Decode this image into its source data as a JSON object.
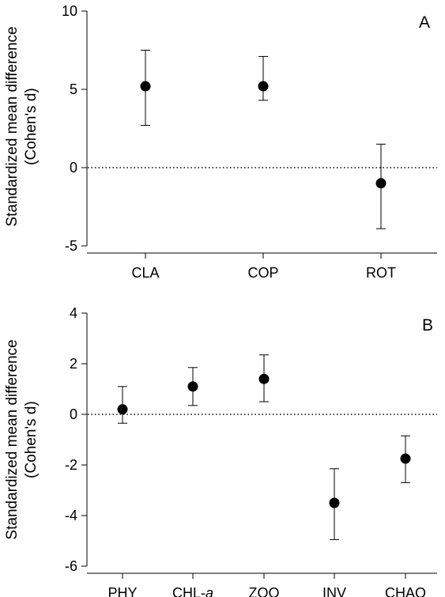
{
  "chart_data": [
    {
      "type": "scatter",
      "panel_label": "A",
      "ylabel": [
        "Standardized mean difference",
        "(Cohen's d)"
      ],
      "ylim": [
        -5,
        10
      ],
      "yticks": [
        10,
        5,
        0,
        -5
      ],
      "reference_line": 0,
      "categories": [
        "CLA",
        "COP",
        "ROT"
      ],
      "values": [
        5.2,
        5.2,
        -1.0
      ],
      "error_upper": [
        7.5,
        7.1,
        1.5
      ],
      "error_lower": [
        2.7,
        4.3,
        -3.9
      ],
      "grid": false
    },
    {
      "type": "scatter",
      "panel_label": "B",
      "ylabel": [
        "Standardized mean difference",
        "(Cohen's d)"
      ],
      "ylim": [
        -6,
        4
      ],
      "yticks": [
        4,
        2,
        0,
        -2,
        -4,
        -6
      ],
      "reference_line": 0,
      "categories": [
        {
          "text": "PHY"
        },
        {
          "text": "CHL-",
          "italic_suffix": "a"
        },
        {
          "text": "ZOO"
        },
        {
          "text": "INV"
        },
        {
          "text": "CHAO"
        }
      ],
      "values": [
        0.2,
        1.1,
        1.4,
        -3.5,
        -1.75
      ],
      "error_upper": [
        1.1,
        1.85,
        2.35,
        -2.15,
        -0.85
      ],
      "error_lower": [
        -0.35,
        0.35,
        0.5,
        -4.95,
        -2.7
      ],
      "grid": false
    }
  ]
}
